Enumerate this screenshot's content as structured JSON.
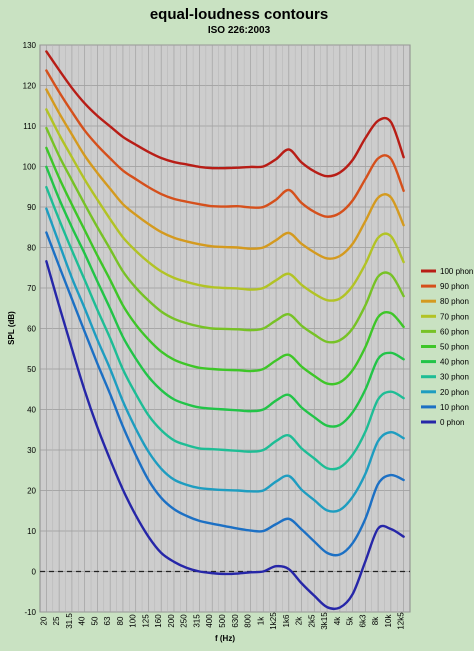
{
  "chart_data": {
    "type": "line",
    "title": "equal-loudness contours",
    "subtitle": "ISO 226:2003",
    "xlabel": "f (Hz)",
    "ylabel": "SPL (dB)",
    "ylim": [
      -10,
      130
    ],
    "yticks": [
      -10,
      0,
      10,
      20,
      30,
      40,
      50,
      60,
      70,
      80,
      90,
      100,
      110,
      120,
      130
    ],
    "categories": [
      "20",
      "25",
      "31.5",
      "40",
      "50",
      "63",
      "80",
      "100",
      "125",
      "160",
      "200",
      "250",
      "315",
      "400",
      "500",
      "630",
      "800",
      "1k",
      "1k25",
      "1k6",
      "2k",
      "2k5",
      "3k15",
      "4k",
      "5k",
      "6k3",
      "8k",
      "10k",
      "12k5"
    ],
    "grid": true,
    "reference_line": {
      "y": 0,
      "style": "dashed"
    },
    "legend_position": "right",
    "series": [
      {
        "name": "100 phon",
        "color": "#b81d16",
        "values": [
          128.4,
          123.8,
          119.4,
          115.6,
          112.5,
          109.9,
          107.3,
          105.4,
          103.6,
          102.1,
          101.1,
          100.5,
          99.9,
          99.6,
          99.6,
          99.7,
          99.9,
          100.0,
          101.8,
          104.2,
          101.0,
          98.8,
          97.6,
          98.5,
          101.6,
          107.0,
          111.3,
          111.0,
          102.3
        ]
      },
      {
        "name": "90 phon",
        "color": "#d5501c",
        "values": [
          123.7,
          118.4,
          113.5,
          108.9,
          105.2,
          102.0,
          99.0,
          96.9,
          94.9,
          93.2,
          92.0,
          91.3,
          90.7,
          90.2,
          90.1,
          90.2,
          89.9,
          90.0,
          91.8,
          94.2,
          91.0,
          88.8,
          87.6,
          88.5,
          91.6,
          96.9,
          102.0,
          101.9,
          94.0
        ]
      },
      {
        "name": "80 phon",
        "color": "#d49a1f",
        "values": [
          119.0,
          113.2,
          107.9,
          102.7,
          98.4,
          94.5,
          90.7,
          88.1,
          85.8,
          83.8,
          82.4,
          81.5,
          80.8,
          80.3,
          80.1,
          80.0,
          79.7,
          80.0,
          81.8,
          83.6,
          80.9,
          78.8,
          77.3,
          77.9,
          80.9,
          86.5,
          92.3,
          92.4,
          85.5
        ]
      },
      {
        "name": "70 phon",
        "color": "#b2c325",
        "values": [
          114.1,
          107.9,
          102.3,
          96.8,
          91.8,
          87.0,
          82.5,
          79.2,
          76.4,
          74.1,
          72.5,
          71.5,
          70.7,
          70.2,
          70.0,
          69.9,
          69.6,
          70.0,
          71.9,
          73.5,
          70.8,
          68.6,
          67.0,
          67.4,
          70.5,
          75.9,
          82.4,
          82.8,
          76.4
        ]
      },
      {
        "name": "60 phon",
        "color": "#77c226",
        "values": [
          109.5,
          102.6,
          96.6,
          90.7,
          85.0,
          79.6,
          74.1,
          70.1,
          66.9,
          64.2,
          62.4,
          61.3,
          60.5,
          60.0,
          59.9,
          59.8,
          59.6,
          60.0,
          62.0,
          63.5,
          60.7,
          58.5,
          56.7,
          57.1,
          60.0,
          65.7,
          72.8,
          73.3,
          68.0
        ]
      },
      {
        "name": "50 phon",
        "color": "#3ec628",
        "values": [
          104.6,
          97.2,
          90.6,
          84.3,
          78.0,
          72.0,
          65.7,
          61.0,
          57.3,
          54.3,
          52.3,
          51.1,
          50.3,
          50.0,
          49.8,
          49.7,
          49.5,
          50.0,
          52.1,
          53.5,
          50.6,
          48.3,
          46.4,
          46.7,
          49.7,
          55.4,
          62.8,
          63.8,
          60.4
        ]
      },
      {
        "name": "40 phon",
        "color": "#22c448",
        "values": [
          99.9,
          92.0,
          85.0,
          78.5,
          71.6,
          64.9,
          57.9,
          52.6,
          48.1,
          44.8,
          42.5,
          41.3,
          40.5,
          40.2,
          40.0,
          39.8,
          39.6,
          40.0,
          42.2,
          43.6,
          40.5,
          38.1,
          36.0,
          36.2,
          39.3,
          44.9,
          52.5,
          54.0,
          52.4
        ]
      },
      {
        "name": "30 phon",
        "color": "#1ebd95",
        "values": [
          94.9,
          86.9,
          79.3,
          72.0,
          64.6,
          57.6,
          49.9,
          43.9,
          38.6,
          34.9,
          32.4,
          31.2,
          30.4,
          30.2,
          30.0,
          29.8,
          29.6,
          30.0,
          32.2,
          33.6,
          30.4,
          27.9,
          25.5,
          25.7,
          28.8,
          34.5,
          42.5,
          44.4,
          42.8
        ]
      },
      {
        "name": "20 phon",
        "color": "#1e9dc0",
        "values": [
          89.6,
          81.0,
          72.5,
          65.0,
          57.2,
          50.0,
          42.0,
          35.3,
          29.6,
          25.4,
          22.7,
          21.4,
          20.6,
          20.3,
          20.1,
          20.0,
          19.8,
          20.0,
          22.2,
          23.6,
          20.2,
          17.6,
          15.1,
          15.2,
          18.4,
          24.1,
          32.2,
          34.4,
          32.9
        ]
      },
      {
        "name": "10 phon",
        "color": "#1c70c4",
        "values": [
          83.7,
          75.4,
          67.3,
          59.2,
          51.3,
          43.8,
          35.8,
          28.8,
          22.6,
          18.2,
          15.4,
          13.7,
          12.5,
          11.8,
          11.2,
          10.6,
          10.1,
          10.0,
          11.7,
          13.0,
          10.4,
          7.4,
          4.6,
          4.2,
          7.0,
          13.0,
          21.6,
          23.8,
          22.6
        ]
      },
      {
        "name": "0 phon",
        "color": "#2626a8",
        "values": [
          76.6,
          65.6,
          55.0,
          44.7,
          35.6,
          27.6,
          20.2,
          13.9,
          8.6,
          4.6,
          2.4,
          0.9,
          0.0,
          -0.4,
          -0.6,
          -0.5,
          -0.2,
          0.0,
          1.3,
          0.6,
          -2.9,
          -6.0,
          -8.8,
          -8.9,
          -5.6,
          2.5,
          10.6,
          10.5,
          8.6
        ]
      }
    ]
  }
}
